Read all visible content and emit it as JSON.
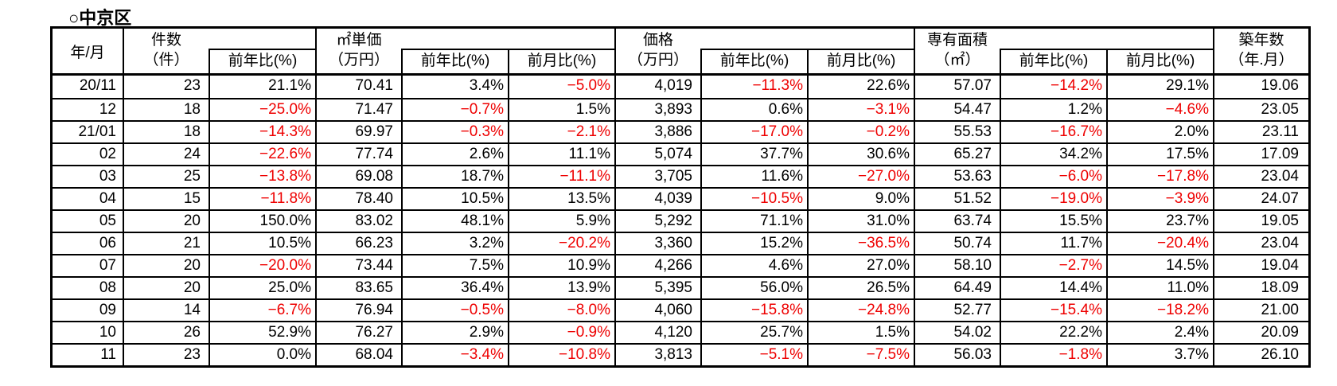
{
  "title": "○中京区",
  "colors": {
    "text": "#000000",
    "negative_value": "#ee0000",
    "border": "#000000",
    "background": "#ffffff"
  },
  "table": {
    "year_month_header": "年/月",
    "groups": [
      {
        "name": "kensu",
        "label": "件数",
        "unit": "（件）",
        "subs": [
          "前年比(%)"
        ]
      },
      {
        "name": "tanka",
        "label": "㎡単価",
        "unit": "（万円）",
        "subs": [
          "前年比(%)",
          "前月比(%)"
        ]
      },
      {
        "name": "kakaku",
        "label": "価格",
        "unit": "（万円）",
        "subs": [
          "前年比(%)",
          "前月比(%)"
        ]
      },
      {
        "name": "menseki",
        "label": "専有面積",
        "unit": "（㎡）",
        "subs": [
          "前年比(%)",
          "前月比(%)"
        ]
      },
      {
        "name": "chikunen",
        "label": "築年数",
        "unit": "（年.月）",
        "subs": []
      }
    ],
    "rows": [
      {
        "ym": "20/11",
        "cells": [
          "23",
          "21.1%",
          "70.41",
          "3.4%",
          "−5.0%",
          "4,019",
          "−11.3%",
          "22.6%",
          "57.07",
          "−14.2%",
          "29.1%",
          "19.06"
        ]
      },
      {
        "ym": "12",
        "cells": [
          "18",
          "−25.0%",
          "71.47",
          "−0.7%",
          "1.5%",
          "3,893",
          "0.6%",
          "−3.1%",
          "54.47",
          "1.2%",
          "−4.6%",
          "23.05"
        ]
      },
      {
        "ym": "21/01",
        "cells": [
          "18",
          "−14.3%",
          "69.97",
          "−0.3%",
          "−2.1%",
          "3,886",
          "−17.0%",
          "−0.2%",
          "55.53",
          "−16.7%",
          "2.0%",
          "23.11"
        ]
      },
      {
        "ym": "02",
        "cells": [
          "24",
          "−22.6%",
          "77.74",
          "2.6%",
          "11.1%",
          "5,074",
          "37.7%",
          "30.6%",
          "65.27",
          "34.2%",
          "17.5%",
          "17.09"
        ]
      },
      {
        "ym": "03",
        "cells": [
          "25",
          "−13.8%",
          "69.08",
          "18.7%",
          "−11.1%",
          "3,705",
          "11.6%",
          "−27.0%",
          "53.63",
          "−6.0%",
          "−17.8%",
          "23.04"
        ]
      },
      {
        "ym": "04",
        "cells": [
          "15",
          "−11.8%",
          "78.40",
          "10.5%",
          "13.5%",
          "4,039",
          "−10.5%",
          "9.0%",
          "51.52",
          "−19.0%",
          "−3.9%",
          "24.07"
        ]
      },
      {
        "ym": "05",
        "cells": [
          "20",
          "150.0%",
          "83.02",
          "48.1%",
          "5.9%",
          "5,292",
          "71.1%",
          "31.0%",
          "63.74",
          "15.5%",
          "23.7%",
          "19.05"
        ]
      },
      {
        "ym": "06",
        "cells": [
          "21",
          "10.5%",
          "66.23",
          "3.2%",
          "−20.2%",
          "3,360",
          "15.2%",
          "−36.5%",
          "50.74",
          "11.7%",
          "−20.4%",
          "23.04"
        ]
      },
      {
        "ym": "07",
        "cells": [
          "20",
          "−20.0%",
          "73.44",
          "7.5%",
          "10.9%",
          "4,266",
          "4.6%",
          "27.0%",
          "58.10",
          "−2.7%",
          "14.5%",
          "19.04"
        ]
      },
      {
        "ym": "08",
        "cells": [
          "20",
          "25.0%",
          "83.65",
          "36.4%",
          "13.9%",
          "5,395",
          "56.0%",
          "26.5%",
          "64.49",
          "14.4%",
          "11.0%",
          "18.09"
        ]
      },
      {
        "ym": "09",
        "cells": [
          "14",
          "−6.7%",
          "76.94",
          "−0.5%",
          "−8.0%",
          "4,060",
          "−15.8%",
          "−24.8%",
          "52.77",
          "−15.4%",
          "−18.2%",
          "21.00"
        ]
      },
      {
        "ym": "10",
        "cells": [
          "26",
          "52.9%",
          "76.27",
          "2.9%",
          "−0.9%",
          "4,120",
          "25.7%",
          "1.5%",
          "54.02",
          "22.2%",
          "2.4%",
          "20.09"
        ]
      },
      {
        "ym": "11",
        "cells": [
          "23",
          "0.0%",
          "68.04",
          "−3.4%",
          "−10.8%",
          "3,813",
          "−5.1%",
          "−7.5%",
          "56.03",
          "−1.8%",
          "3.7%",
          "26.10"
        ]
      }
    ]
  }
}
